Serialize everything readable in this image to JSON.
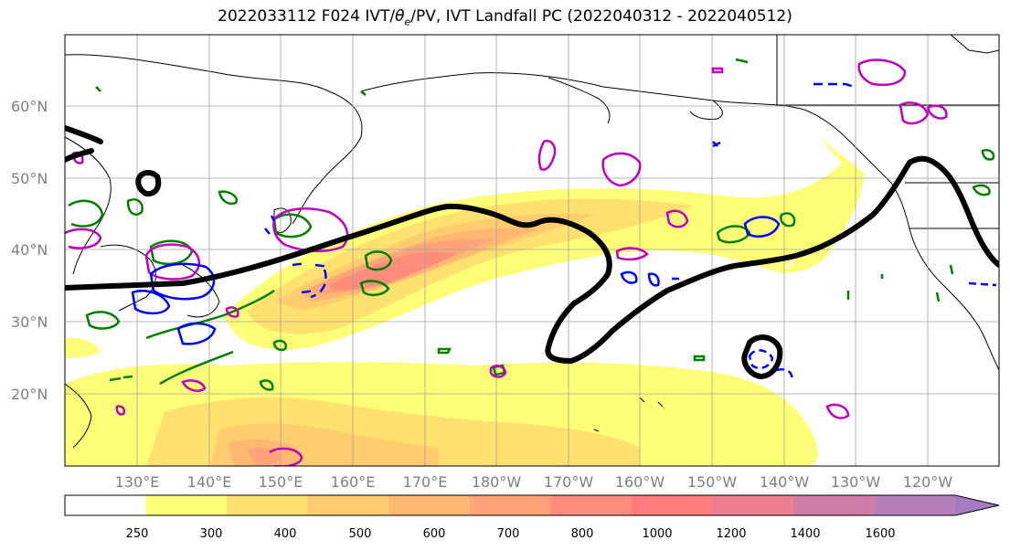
{
  "title": {
    "prefix": "2022033112 F024 IVT/",
    "theta": "θ",
    "theta_sub": "e",
    "suffix": "/PV, IVT Landfall PC (2022040312 - 2022040512)"
  },
  "map": {
    "lat_labels": [
      "20°N",
      "30°N",
      "40°N",
      "50°N",
      "60°N"
    ],
    "lon_labels": [
      "130°E",
      "140°E",
      "150°E",
      "160°E",
      "170°E",
      "180°W",
      "170°W",
      "160°W",
      "150°W",
      "140°W",
      "130°W",
      "120°W"
    ],
    "gridlines": true,
    "colors": {
      "land_outline": "#000000",
      "ivt_contour_bold": "#000000",
      "theta_e_contour": "#008000",
      "pv_contour_magenta": "#c000c0",
      "pv_contour_blue": "#0000ff",
      "grid": "#a0a0a0"
    }
  },
  "colorbar": {
    "ticks": [
      "250",
      "300",
      "400",
      "500",
      "600",
      "700",
      "800",
      "1000",
      "1200",
      "1400",
      "1600"
    ],
    "colors": [
      "#ffffff",
      "#ffff77",
      "#ffe170",
      "#ffcd6e",
      "#ffb872",
      "#ffa479",
      "#ff8d7c",
      "#ff7b7c",
      "#ee7d91",
      "#d07ea7",
      "#b57fb9",
      "#a47cc4"
    ]
  }
}
